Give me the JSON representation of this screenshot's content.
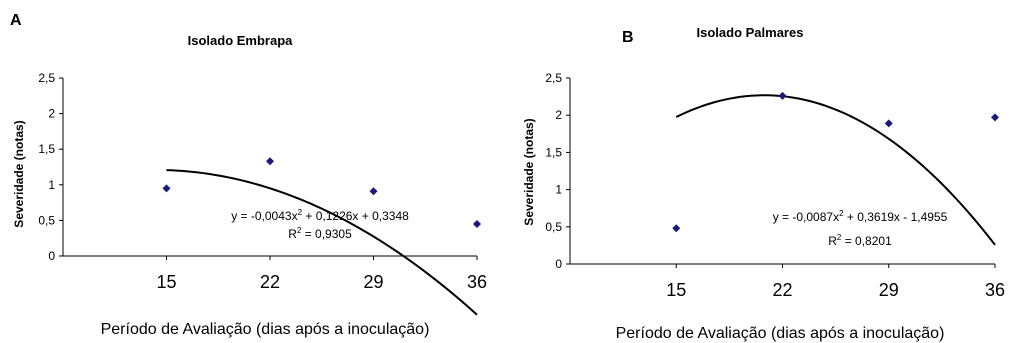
{
  "chart_data": [
    {
      "type": "scatter",
      "panel_letter": "A",
      "title": "Isolado Embrapa",
      "xlabel": "Período de Avaliação (dias após a inoculação)",
      "ylabel": "Severidade (notas)",
      "x_ticks": [
        "15",
        "22",
        "29",
        "36"
      ],
      "y_ticks": [
        "0",
        "0,5",
        "1",
        "1,5",
        "2",
        "2,5"
      ],
      "xlim": [
        8,
        36
      ],
      "ylim": [
        0,
        2.5
      ],
      "series": [
        {
          "x": [
            15,
            22,
            29,
            36
          ],
          "y": [
            0.95,
            1.33,
            0.91,
            0.45
          ],
          "marker": "diamond",
          "color": "#1a1a7a"
        }
      ],
      "trendline": {
        "type": "polynomial",
        "a": -0.0043,
        "b": 0.1226,
        "c": 0.3348,
        "x_range": [
          15,
          36
        ],
        "color": "#000000"
      },
      "equation": {
        "prefix": "y = -0,0043x",
        "sup": "2",
        "suffix": " + 0,1226x + 0,3348"
      },
      "r2": {
        "prefix": "R",
        "sup": "2",
        "suffix": " = 0,9305"
      },
      "grid": false,
      "legend": "none"
    },
    {
      "type": "scatter",
      "panel_letter": "B",
      "title": "Isolado Palmares",
      "xlabel": "Período de Avaliação (dias após a inoculação)",
      "ylabel": "Severidade (notas)",
      "x_ticks": [
        "15",
        "22",
        "29",
        "36"
      ],
      "y_ticks": [
        "0",
        "0,5",
        "1",
        "1,5",
        "2",
        "2,5"
      ],
      "xlim": [
        8,
        36
      ],
      "ylim": [
        0,
        2.5
      ],
      "series": [
        {
          "x": [
            15,
            22,
            29,
            36
          ],
          "y": [
            0.48,
            2.26,
            1.89,
            1.97
          ],
          "marker": "diamond",
          "color": "#1a1a7a"
        }
      ],
      "trendline": {
        "type": "polynomial",
        "a": -0.0087,
        "b": 0.3619,
        "c": -1.4955,
        "x_range": [
          15,
          36
        ],
        "color": "#000000"
      },
      "equation": {
        "prefix": "y = -0,0087x",
        "sup": "2",
        "suffix": " + 0,3619x - 1,4955"
      },
      "r2": {
        "prefix": "R",
        "sup": "2",
        "suffix": " = 0,8201"
      },
      "grid": false,
      "legend": "none"
    }
  ]
}
